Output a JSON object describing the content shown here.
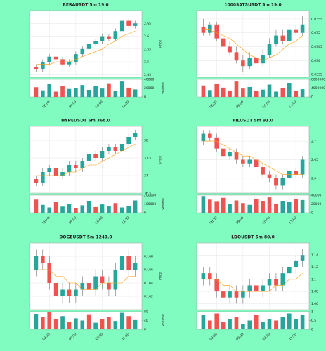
{
  "chart_data": [
    {
      "type": "candlestick",
      "title": "BERAUSDT 5m 19.0",
      "ylabel": "Price",
      "y2label": "Volume",
      "up_color": "#26a69a",
      "down_color": "#ef5350",
      "ma_color": "#ff9800",
      "grid": true,
      "open": [
        2.48,
        2.47,
        2.5,
        2.52,
        2.51,
        2.49,
        2.5,
        2.53,
        2.55,
        2.57,
        2.58,
        2.6,
        2.59,
        2.62,
        2.66,
        2.64
      ],
      "close": [
        2.47,
        2.5,
        2.52,
        2.51,
        2.49,
        2.5,
        2.53,
        2.55,
        2.57,
        2.58,
        2.6,
        2.59,
        2.62,
        2.66,
        2.64,
        2.65
      ],
      "high": [
        2.49,
        2.51,
        2.53,
        2.53,
        2.52,
        2.51,
        2.54,
        2.56,
        2.58,
        2.59,
        2.61,
        2.61,
        2.63,
        2.68,
        2.67,
        2.66
      ],
      "low": [
        2.46,
        2.46,
        2.49,
        2.5,
        2.48,
        2.48,
        2.49,
        2.52,
        2.54,
        2.56,
        2.57,
        2.58,
        2.58,
        2.61,
        2.63,
        2.63
      ],
      "ma": [
        2.49,
        2.49,
        2.49,
        2.5,
        2.5,
        2.5,
        2.51,
        2.52,
        2.53,
        2.54,
        2.55,
        2.57,
        2.58,
        2.6,
        2.61,
        2.62
      ],
      "volume": [
        22000,
        15000,
        30000,
        12000,
        25000,
        18000,
        20000,
        27000,
        16000,
        24000,
        19000,
        31000,
        14000,
        35000,
        21000,
        17000
      ],
      "xlim": [
        -1,
        16
      ],
      "ylim": [
        2.44,
        2.7
      ],
      "yticks": [
        2.45,
        2.5,
        2.55,
        2.6,
        2.65
      ],
      "vlim": [
        0,
        40000
      ],
      "vticks": [
        0,
        20000,
        40000
      ],
      "xticks": [
        {
          "value": 2,
          "label": "08:00"
        },
        {
          "value": 6,
          "label": "09:00"
        },
        {
          "value": 10,
          "label": "10:00"
        },
        {
          "value": 14,
          "label": "11:00"
        }
      ]
    },
    {
      "type": "candlestick",
      "title": "1000SATSUSDT 5m 19.0",
      "ylabel": "Price",
      "y2label": "Volume",
      "up_color": "#26a69a",
      "down_color": "#ef5350",
      "ma_color": "#ff9800",
      "grid": true,
      "open": [
        0.0352,
        0.035,
        0.0353,
        0.0348,
        0.0345,
        0.0343,
        0.034,
        0.0338,
        0.0341,
        0.0339,
        0.0342,
        0.0346,
        0.0349,
        0.0347,
        0.0351,
        0.035
      ],
      "close": [
        0.035,
        0.0353,
        0.0348,
        0.0345,
        0.0343,
        0.034,
        0.0338,
        0.0341,
        0.0339,
        0.0342,
        0.0346,
        0.0349,
        0.0347,
        0.0351,
        0.035,
        0.0353
      ],
      "high": [
        0.0355,
        0.0354,
        0.0354,
        0.035,
        0.0347,
        0.0345,
        0.0342,
        0.0343,
        0.0343,
        0.0344,
        0.0348,
        0.0351,
        0.0351,
        0.0353,
        0.0353,
        0.0356
      ],
      "low": [
        0.0349,
        0.0349,
        0.0347,
        0.0344,
        0.0342,
        0.0339,
        0.0336,
        0.0337,
        0.0338,
        0.0338,
        0.0341,
        0.0345,
        0.0346,
        0.0346,
        0.0349,
        0.0349
      ],
      "ma": [
        0.0351,
        0.0351,
        0.035,
        0.0349,
        0.0348,
        0.0346,
        0.0344,
        0.0342,
        0.0341,
        0.034,
        0.0341,
        0.0342,
        0.0344,
        0.0346,
        0.0347,
        0.0349
      ],
      "volume": [
        5200000,
        3100000,
        6100000,
        4200000,
        2900000,
        7000000,
        3800000,
        4500000,
        2600000,
        3300000,
        5600000,
        2400000,
        3900000,
        6400000,
        2800000,
        3500000
      ],
      "xlim": [
        -1,
        16
      ],
      "ylim": [
        0.0334,
        0.0358
      ],
      "yticks": [
        0.0335,
        0.034,
        0.0345,
        0.035,
        0.0355
      ],
      "vlim": [
        0,
        8000000
      ],
      "vticks": [
        0,
        4000000,
        8000000
      ],
      "xticks": [
        {
          "value": 2,
          "label": "08:00"
        },
        {
          "value": 6,
          "label": "09:00"
        },
        {
          "value": 10,
          "label": "10:00"
        },
        {
          "value": 14,
          "label": "11:00"
        }
      ]
    },
    {
      "type": "candlestick",
      "title": "HYPEUSDT 5m 368.0",
      "ylabel": "Price",
      "y2label": "Volume",
      "up_color": "#26a69a",
      "down_color": "#ef5350",
      "ma_color": "#ff9800",
      "grid": true,
      "open": [
        36.9,
        36.8,
        37.1,
        37.2,
        37,
        37.1,
        37.3,
        37.2,
        37.4,
        37.6,
        37.5,
        37.7,
        37.8,
        37.7,
        37.9,
        38.1
      ],
      "close": [
        36.8,
        37.1,
        37.2,
        37,
        37.1,
        37.3,
        37.2,
        37.4,
        37.6,
        37.5,
        37.7,
        37.8,
        37.7,
        37.9,
        38.1,
        38.2
      ],
      "high": [
        37,
        37.2,
        37.3,
        37.3,
        37.2,
        37.4,
        37.4,
        37.5,
        37.7,
        37.7,
        37.8,
        37.9,
        37.9,
        38,
        38.2,
        38.3
      ],
      "low": [
        36.7,
        36.7,
        37,
        36.9,
        36.9,
        37,
        37.1,
        37.1,
        37.3,
        37.4,
        37.4,
        37.6,
        37.6,
        37.6,
        37.8,
        38
      ],
      "ma": [
        37,
        37,
        37,
        37,
        37,
        37.1,
        37.1,
        37.2,
        37.3,
        37.3,
        37.4,
        37.5,
        37.6,
        37.7,
        37.8,
        37.9
      ],
      "volume": [
        150000,
        90000,
        60000,
        120000,
        70000,
        100000,
        55000,
        85000,
        130000,
        65000,
        95000,
        75000,
        110000,
        60000,
        80000,
        140000
      ],
      "xlim": [
        -1,
        16
      ],
      "ylim": [
        36.5,
        38.4
      ],
      "yticks": [
        36.5,
        37,
        37.5,
        38
      ],
      "vlim": [
        0,
        200000
      ],
      "vticks": [
        0,
        100000,
        200000
      ],
      "xticks": [
        {
          "value": 2,
          "label": "08:00"
        },
        {
          "value": 6,
          "label": "09:00"
        },
        {
          "value": 10,
          "label": "10:00"
        },
        {
          "value": 14,
          "label": "11:00"
        }
      ]
    },
    {
      "type": "candlestick",
      "title": "FILUSDT 5m 91.0",
      "ylabel": "Price",
      "y2label": "Volume",
      "up_color": "#26a69a",
      "down_color": "#ef5350",
      "ma_color": "#ff9800",
      "grid": true,
      "open": [
        2.7,
        2.72,
        2.71,
        2.68,
        2.66,
        2.67,
        2.65,
        2.64,
        2.65,
        2.63,
        2.61,
        2.6,
        2.58,
        2.6,
        2.62,
        2.61
      ],
      "close": [
        2.72,
        2.71,
        2.68,
        2.66,
        2.67,
        2.65,
        2.64,
        2.65,
        2.63,
        2.61,
        2.6,
        2.58,
        2.6,
        2.62,
        2.61,
        2.65
      ],
      "high": [
        2.73,
        2.73,
        2.72,
        2.69,
        2.68,
        2.68,
        2.66,
        2.66,
        2.66,
        2.64,
        2.62,
        2.61,
        2.61,
        2.63,
        2.63,
        2.66
      ],
      "low": [
        2.69,
        2.7,
        2.67,
        2.65,
        2.65,
        2.64,
        2.63,
        2.63,
        2.62,
        2.6,
        2.59,
        2.57,
        2.57,
        2.59,
        2.6,
        2.6
      ],
      "ma": [
        2.7,
        2.7,
        2.7,
        2.69,
        2.68,
        2.67,
        2.66,
        2.66,
        2.65,
        2.64,
        2.63,
        2.62,
        2.61,
        2.61,
        2.61,
        2.61
      ],
      "volume": [
        38000,
        30000,
        25000,
        34000,
        20000,
        28000,
        22000,
        18000,
        31000,
        26000,
        35000,
        21000,
        27000,
        24000,
        32000,
        29000
      ],
      "xlim": [
        -1,
        16
      ],
      "ylim": [
        2.56,
        2.74
      ],
      "yticks": [
        2.6,
        2.65,
        2.7
      ],
      "vlim": [
        0,
        40000
      ],
      "vticks": [
        0,
        20000,
        40000
      ],
      "xticks": [
        {
          "value": 2,
          "label": "08:00"
        },
        {
          "value": 6,
          "label": "09:00"
        },
        {
          "value": 10,
          "label": "10:00"
        },
        {
          "value": 14,
          "label": "11:00"
        }
      ]
    },
    {
      "type": "candlestick",
      "title": "DOGEUSDT 5m 1243.0",
      "ylabel": "Price",
      "y2label": "Volume",
      "up_color": "#26a69a",
      "down_color": "#ef5350",
      "ma_color": "#ff9800",
      "grid": true,
      "open": [
        0.166,
        0.168,
        0.167,
        0.164,
        0.162,
        0.163,
        0.162,
        0.163,
        0.164,
        0.163,
        0.165,
        0.164,
        0.163,
        0.166,
        0.168,
        0.166
      ],
      "close": [
        0.168,
        0.167,
        0.164,
        0.162,
        0.163,
        0.162,
        0.163,
        0.164,
        0.163,
        0.165,
        0.164,
        0.163,
        0.166,
        0.168,
        0.166,
        0.167
      ],
      "high": [
        0.169,
        0.169,
        0.168,
        0.165,
        0.164,
        0.164,
        0.164,
        0.165,
        0.165,
        0.166,
        0.166,
        0.165,
        0.167,
        0.169,
        0.169,
        0.168
      ],
      "low": [
        0.165,
        0.166,
        0.163,
        0.161,
        0.161,
        0.161,
        0.161,
        0.162,
        0.162,
        0.162,
        0.163,
        0.162,
        0.162,
        0.165,
        0.165,
        0.165
      ],
      "ma": [
        0.166,
        0.166,
        0.166,
        0.165,
        0.165,
        0.164,
        0.164,
        0.163,
        0.163,
        0.163,
        0.164,
        0.164,
        0.164,
        0.164,
        0.165,
        0.165
      ],
      "volume": [
        70,
        55,
        80,
        45,
        60,
        35,
        50,
        40,
        65,
        30,
        45,
        55,
        38,
        75,
        60,
        42
      ],
      "xlim": [
        -1,
        16
      ],
      "ylim": [
        0.16,
        0.17
      ],
      "yticks": [
        0.162,
        0.164,
        0.166,
        0.168
      ],
      "vlim": [
        0,
        80
      ],
      "vticks": [
        0,
        40,
        80
      ],
      "xticks": [
        {
          "value": 2,
          "label": "08:00"
        },
        {
          "value": 6,
          "label": "09:00"
        },
        {
          "value": 10,
          "label": "10:00"
        },
        {
          "value": 14,
          "label": "11:00"
        }
      ]
    },
    {
      "type": "candlestick",
      "title": "LDOUSDT 5m 80.0",
      "ylabel": "Price",
      "y2label": "Volume",
      "up_color": "#26a69a",
      "down_color": "#ef5350",
      "ma_color": "#ff9800",
      "grid": true,
      "open": [
        1.1,
        1.11,
        1.1,
        1.08,
        1.07,
        1.08,
        1.07,
        1.08,
        1.09,
        1.08,
        1.09,
        1.1,
        1.09,
        1.11,
        1.12,
        1.13
      ],
      "close": [
        1.11,
        1.1,
        1.08,
        1.07,
        1.08,
        1.07,
        1.08,
        1.09,
        1.08,
        1.09,
        1.1,
        1.09,
        1.11,
        1.12,
        1.13,
        1.14
      ],
      "high": [
        1.12,
        1.12,
        1.11,
        1.09,
        1.09,
        1.09,
        1.09,
        1.1,
        1.1,
        1.1,
        1.11,
        1.11,
        1.12,
        1.13,
        1.14,
        1.15
      ],
      "low": [
        1.09,
        1.09,
        1.07,
        1.06,
        1.06,
        1.06,
        1.06,
        1.07,
        1.07,
        1.07,
        1.08,
        1.08,
        1.08,
        1.1,
        1.11,
        1.12
      ],
      "ma": [
        1.1,
        1.1,
        1.1,
        1.09,
        1.09,
        1.08,
        1.08,
        1.08,
        1.08,
        1.08,
        1.08,
        1.09,
        1.09,
        1.1,
        1.1,
        1.11
      ],
      "volume": [
        0.8,
        0.5,
        0.9,
        0.4,
        0.6,
        0.7,
        0.3,
        0.5,
        0.8,
        0.4,
        0.6,
        0.5,
        0.7,
        0.9,
        0.6,
        0.8
      ],
      "xlim": [
        -1,
        16
      ],
      "ylim": [
        1.05,
        1.16
      ],
      "yticks": [
        1.06,
        1.08,
        1.1,
        1.12,
        1.14
      ],
      "vlim": [
        0,
        1
      ],
      "vticks": [
        0,
        0.5,
        1
      ],
      "xticks": [
        {
          "value": 2,
          "label": "08:00"
        },
        {
          "value": 6,
          "label": "09:00"
        },
        {
          "value": 10,
          "label": "10:00"
        },
        {
          "value": 14,
          "label": "11:00"
        }
      ]
    }
  ]
}
